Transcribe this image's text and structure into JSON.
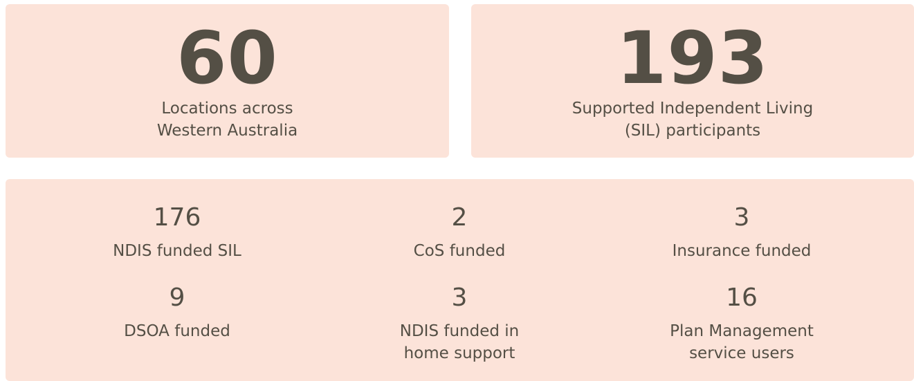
{
  "highlights": [
    {
      "number": "60",
      "label": "Locations across\nWestern Australia"
    },
    {
      "number": "193",
      "label": "Supported Independent Living\n(SIL) participants"
    }
  ],
  "stats": [
    {
      "number": "176",
      "label": "NDIS funded SIL"
    },
    {
      "number": "2",
      "label": "CoS funded"
    },
    {
      "number": "3",
      "label": "Insurance funded"
    },
    {
      "number": "9",
      "label": "DSOA funded"
    },
    {
      "number": "3",
      "label": "NDIS funded in\nhome support"
    },
    {
      "number": "16",
      "label": "Plan Management\nservice users"
    }
  ]
}
